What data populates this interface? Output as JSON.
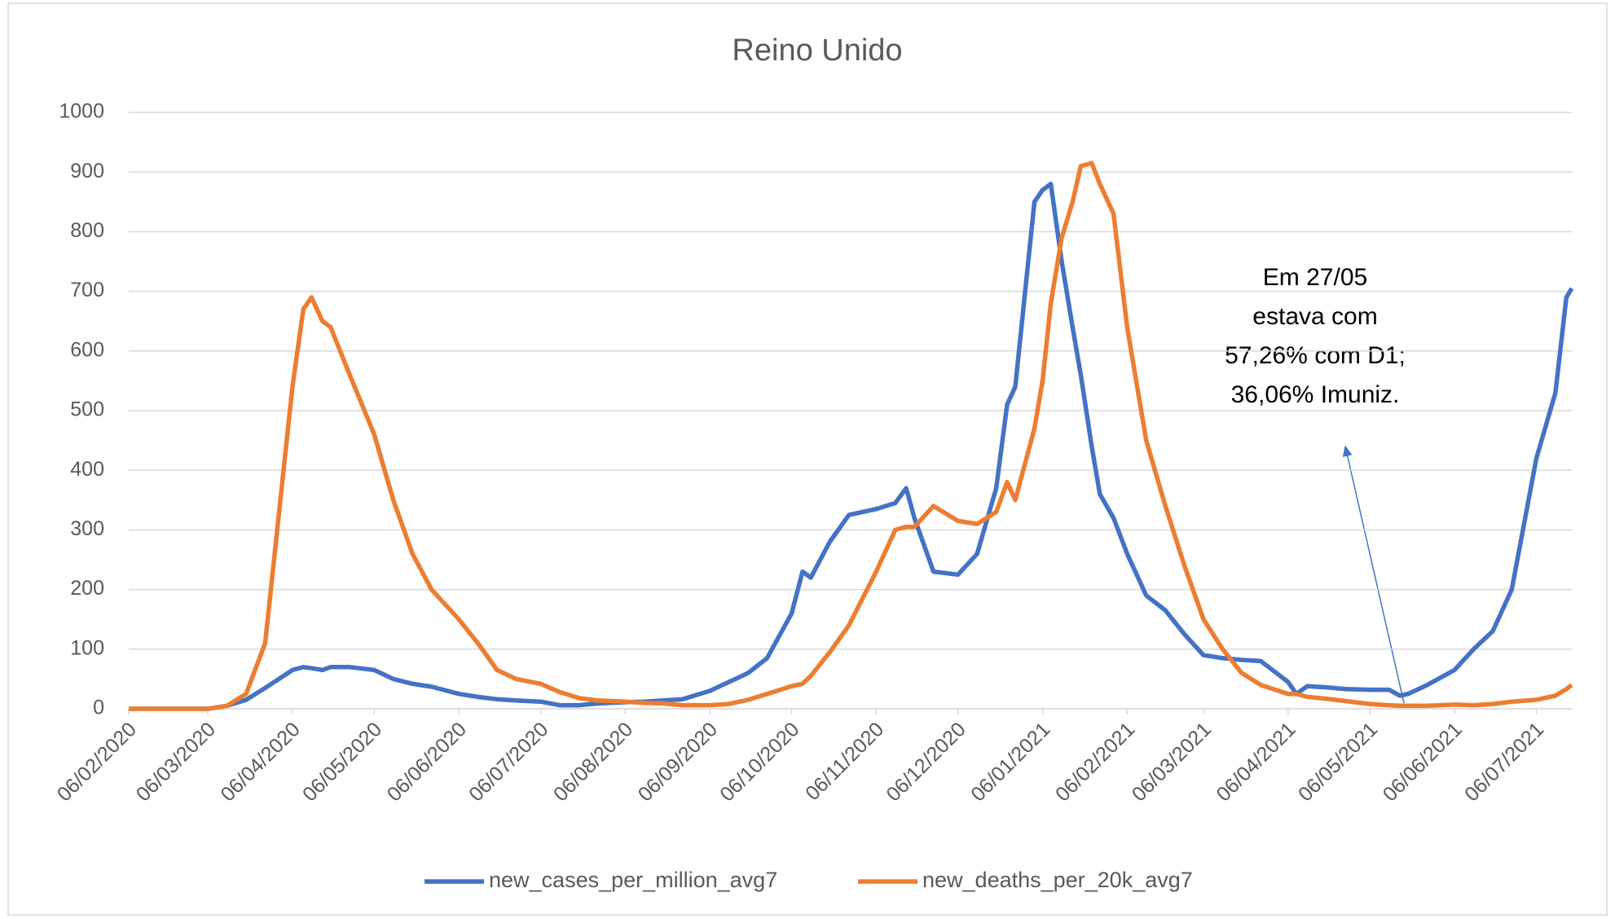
{
  "chart_data": {
    "type": "line",
    "title": "Reino Unido",
    "x": [
      "06/02/2020",
      "20/02/2020",
      "06/03/2020",
      "13/03/2020",
      "20/03/2020",
      "27/03/2020",
      "06/04/2020",
      "10/04/2020",
      "13/04/2020",
      "17/04/2020",
      "20/04/2020",
      "27/04/2020",
      "06/05/2020",
      "13/05/2020",
      "20/05/2020",
      "27/05/2020",
      "06/06/2020",
      "13/06/2020",
      "20/06/2020",
      "27/06/2020",
      "06/07/2020",
      "13/07/2020",
      "20/07/2020",
      "27/07/2020",
      "06/08/2020",
      "13/08/2020",
      "20/08/2020",
      "27/08/2020",
      "06/09/2020",
      "13/09/2020",
      "20/09/2020",
      "27/09/2020",
      "06/10/2020",
      "10/10/2020",
      "13/10/2020",
      "20/10/2020",
      "27/10/2020",
      "06/11/2020",
      "13/11/2020",
      "17/11/2020",
      "20/11/2020",
      "27/11/2020",
      "06/12/2020",
      "13/12/2020",
      "20/12/2020",
      "24/12/2020",
      "27/12/2020",
      "03/01/2021",
      "06/01/2021",
      "09/01/2021",
      "13/01/2021",
      "17/01/2021",
      "20/01/2021",
      "24/01/2021",
      "27/01/2021",
      "01/02/2021",
      "06/02/2021",
      "13/02/2021",
      "20/02/2021",
      "27/02/2021",
      "06/03/2021",
      "13/03/2021",
      "20/03/2021",
      "27/03/2021",
      "06/04/2021",
      "09/04/2021",
      "13/04/2021",
      "20/04/2021",
      "27/04/2021",
      "06/05/2021",
      "13/05/2021",
      "17/05/2021",
      "20/05/2021",
      "27/05/2021",
      "06/06/2021",
      "13/06/2021",
      "20/06/2021",
      "27/06/2021",
      "06/07/2021",
      "13/07/2021",
      "17/07/2021",
      "19/07/2021"
    ],
    "series": [
      {
        "name": "new_cases_per_million_avg7",
        "color": "#4472c4",
        "values": [
          0,
          0,
          0,
          5,
          15,
          35,
          65,
          70,
          68,
          65,
          70,
          70,
          65,
          50,
          42,
          37,
          25,
          20,
          16,
          14,
          12,
          6,
          6,
          9,
          11,
          12,
          14,
          16,
          30,
          45,
          60,
          85,
          160,
          230,
          220,
          280,
          325,
          335,
          345,
          370,
          320,
          230,
          225,
          260,
          370,
          510,
          540,
          850,
          870,
          880,
          750,
          640,
          560,
          440,
          360,
          320,
          260,
          190,
          165,
          125,
          90,
          85,
          82,
          80,
          45,
          25,
          38,
          36,
          33,
          32,
          32,
          22,
          25,
          40,
          65,
          100,
          130,
          200,
          420,
          530,
          690,
          705
        ]
      },
      {
        "name": "new_deaths_per_20k_avg7",
        "color": "#ed7d31",
        "values": [
          0,
          0,
          0,
          5,
          25,
          110,
          540,
          670,
          690,
          650,
          640,
          560,
          460,
          350,
          260,
          200,
          150,
          110,
          65,
          50,
          42,
          28,
          18,
          14,
          12,
          10,
          9,
          6,
          6,
          8,
          15,
          25,
          38,
          42,
          55,
          95,
          140,
          230,
          300,
          305,
          305,
          340,
          315,
          310,
          330,
          380,
          350,
          470,
          550,
          680,
          790,
          850,
          910,
          915,
          880,
          830,
          640,
          450,
          340,
          240,
          150,
          100,
          60,
          40,
          25,
          25,
          20,
          17,
          13,
          8,
          6,
          5,
          5,
          5,
          7,
          6,
          8,
          12,
          15,
          22,
          33,
          40
        ]
      }
    ],
    "xlim": [
      "06/02/2020",
      "19/07/2021"
    ],
    "xticks": [
      "06/02/2020",
      "06/03/2020",
      "06/04/2020",
      "06/05/2020",
      "06/06/2020",
      "06/07/2020",
      "06/08/2020",
      "06/09/2020",
      "06/10/2020",
      "06/11/2020",
      "06/12/2020",
      "06/01/2021",
      "06/02/2021",
      "06/03/2021",
      "06/04/2021",
      "06/05/2021",
      "06/06/2021",
      "06/07/2021"
    ],
    "ylim": [
      0,
      1000
    ],
    "yticks": [
      0,
      100,
      200,
      300,
      400,
      500,
      600,
      700,
      800,
      900,
      1000
    ],
    "grid": true,
    "legend": "bottom",
    "annotation": [
      "Em 27/05",
      "estava com",
      "57,26% com D1;",
      "36,06% Imuniz."
    ]
  }
}
